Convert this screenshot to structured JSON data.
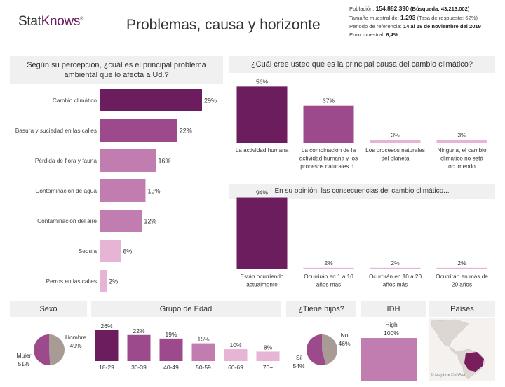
{
  "brand": {
    "part1": "Stat",
    "part2": "Knows",
    "mark": "®"
  },
  "page_title": "Problemas, causa y horizonte",
  "meta": {
    "line1_label": "Población:",
    "line1_value": "154.882.390",
    "line1_extra": "(Búsqueda: 43.213.002)",
    "line2_label": "Tamaño muestral de:",
    "line2_value": "1.293",
    "line2_extra": "(Tasa de respuesta: 62%)",
    "line3_label": "Periodo de referencia:",
    "line3_value": "14 al 18 de noviembre del 2019",
    "line4_label": "Error muestral:",
    "line4_value": "6,4%"
  },
  "colors": {
    "dark": "#6b1d5e",
    "mid": "#9c4a8c",
    "light": "#c17db0",
    "pale": "#e6b5d6",
    "grey": "#a89a95",
    "panel": "#f0f0f0"
  },
  "chart_data": [
    {
      "id": "problema",
      "type": "bar",
      "orientation": "horizontal",
      "title": "Según su percepción, ¿cuál es el principal problema ambiental que lo afecta a Ud.?",
      "categories": [
        "Cambio climático",
        "Basura y suciedad en las calles",
        "Pérdida de flora y fauna",
        "Contaminación de agua",
        "Contaminación del aire",
        "Sequía",
        "Perros en las calles"
      ],
      "values": [
        29,
        22,
        16,
        13,
        12,
        6,
        2
      ],
      "labels": [
        "29%",
        "22%",
        "16%",
        "13%",
        "12%",
        "6%",
        "2%"
      ]
    },
    {
      "id": "causa",
      "type": "bar",
      "title": "¿Cuál cree usted que es la principal causa del cambio climático?",
      "categories": [
        "La actividad humana",
        "La combinación de la actividad humana y los procesos naturales d..",
        "Los procesos naturales del planeta",
        "Ninguna, el cambio climático no está ocurriendo"
      ],
      "values": [
        56,
        37,
        3,
        3
      ],
      "labels": [
        "56%",
        "37%",
        "3%",
        "3%"
      ]
    },
    {
      "id": "consecuencias",
      "type": "bar",
      "title": "En su opinión, las consecuencias del cambio climático...",
      "categories": [
        "Están ocurriendo actualmente",
        "Ocurrirán en 1 a 10 años más",
        "Ocurrirán en 10 a 20 años más",
        "Ocurrirán en más de 20 años"
      ],
      "values": [
        94,
        2,
        2,
        2
      ],
      "labels": [
        "94%",
        "2%",
        "2%",
        "2%"
      ]
    },
    {
      "id": "sexo",
      "type": "pie",
      "title": "Sexo",
      "categories": [
        "Hombre",
        "Mujer"
      ],
      "values": [
        49,
        51
      ],
      "labels": [
        "49%",
        "51%"
      ]
    },
    {
      "id": "edad",
      "type": "bar",
      "title": "Grupo de Edad",
      "categories": [
        "18-29",
        "30-39",
        "40-49",
        "50-59",
        "60-69",
        "70+"
      ],
      "values": [
        26,
        22,
        19,
        15,
        10,
        8
      ],
      "labels": [
        "26%",
        "22%",
        "19%",
        "15%",
        "10%",
        "8%"
      ]
    },
    {
      "id": "hijos",
      "type": "pie",
      "title": "¿Tiene hijos?",
      "categories": [
        "No",
        "Sí"
      ],
      "values": [
        46,
        54
      ],
      "labels": [
        "46%",
        "54%"
      ]
    },
    {
      "id": "idh",
      "type": "bar",
      "title": "IDH",
      "categories": [
        "High"
      ],
      "values": [
        100
      ],
      "labels": [
        "100%"
      ]
    }
  ],
  "map": {
    "title": "Países",
    "credit1": "© Mapbox",
    "credit2": "© OSM"
  }
}
